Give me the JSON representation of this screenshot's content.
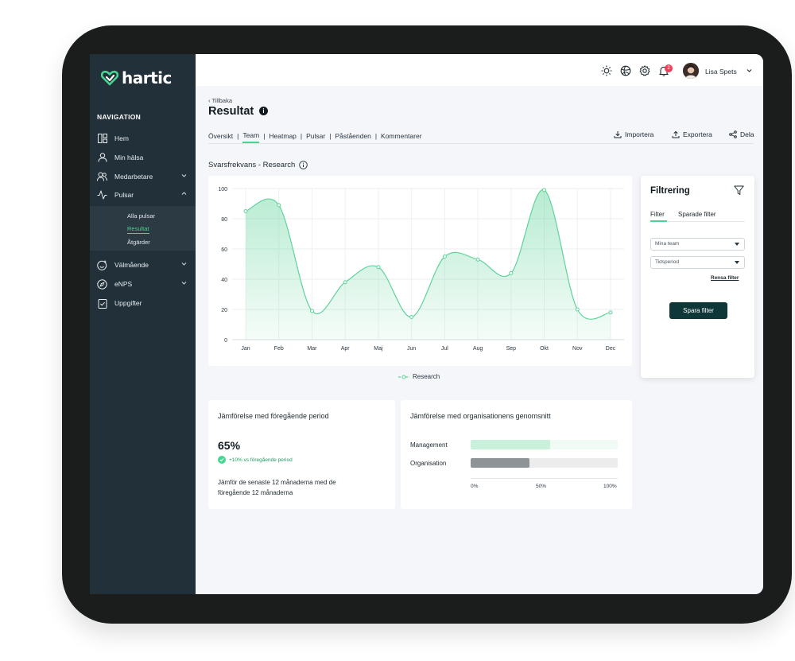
{
  "app": {
    "name": "hartic"
  },
  "sidebar": {
    "nav_title": "NAVIGATION",
    "items": [
      {
        "label": "Hem",
        "icon": "dashboard-icon"
      },
      {
        "label": "Min hälsa",
        "icon": "user-icon"
      },
      {
        "label": "Medarbetare",
        "icon": "users-icon",
        "expandable": true
      },
      {
        "label": "Pulsar",
        "icon": "activity-icon",
        "expandable": true,
        "expanded": true
      },
      {
        "label": "Välmående",
        "icon": "smiley-icon",
        "expandable": true
      },
      {
        "label": "eNPS",
        "icon": "compass-icon",
        "expandable": true
      },
      {
        "label": "Uppgifter",
        "icon": "clipboard-icon"
      }
    ],
    "subitems": [
      {
        "label": "Alla pulsar",
        "active": false
      },
      {
        "label": "Resultat",
        "active": true
      },
      {
        "label": "Åtgärder",
        "active": false
      }
    ]
  },
  "topbar": {
    "icons": [
      "sun-icon",
      "globe-icon",
      "gear-icon",
      "bell-icon"
    ],
    "notification_count": "2",
    "user_name": "Lisa Spets"
  },
  "page": {
    "back_label": "Tillbaka",
    "title": "Resultat",
    "tabs": [
      {
        "label": "Översikt",
        "active": false
      },
      {
        "label": "Team",
        "active": true
      },
      {
        "label": "Heatmap",
        "active": false
      },
      {
        "label": "Pulsar",
        "active": false
      },
      {
        "label": "Påståenden",
        "active": false
      },
      {
        "label": "Kommentarer",
        "active": false
      }
    ],
    "actions": {
      "import": "Importera",
      "export": "Exportera",
      "share": "Dela"
    },
    "section_title": "Svarsfrekvans - Research"
  },
  "chart_data": {
    "type": "area",
    "title": "Svarsfrekvans - Research",
    "categories": [
      "Jan",
      "Feb",
      "Mar",
      "Apr",
      "Maj",
      "Jun",
      "Jul",
      "Aug",
      "Sep",
      "Okt",
      "Nov",
      "Dec"
    ],
    "series": [
      {
        "name": "Research",
        "values": [
          85,
          89,
          19,
          38,
          48,
          15,
          55,
          53,
          44,
          99,
          20,
          18
        ]
      }
    ],
    "yticks": [
      "0",
      "20",
      "40",
      "60",
      "80",
      "100"
    ],
    "ylim": [
      0,
      100
    ],
    "grid": true,
    "legend": "bottom",
    "color": "#5fd39a"
  },
  "filter": {
    "title": "Filtrering",
    "tabs": [
      "Filter",
      "Sparade filter"
    ],
    "selects": [
      "Mina team",
      "Tidsperiod"
    ],
    "clear_label": "Rensa filter",
    "save_label": "Spara filter"
  },
  "comparison_previous": {
    "title": "Jämförelse med föregående period",
    "value": "65%",
    "delta": "+10% vs föregående period",
    "description": "Jämför de senaste 12 månaderna med de föregående 12 månaderna"
  },
  "comparison_org": {
    "title": "Jämförelse med organisationens genomsnitt",
    "bars": [
      {
        "label": "Management",
        "percent": 54,
        "color": "#c9f0da",
        "track": "#f1fbf5"
      },
      {
        "label": "Organisation",
        "percent": 40,
        "color": "#8e9396",
        "track": "#ececec"
      }
    ],
    "ticks": [
      "0%",
      "50%",
      "100%"
    ]
  },
  "colors": {
    "accent": "#48d491",
    "sidebar": "#22303a",
    "button": "#0f3638"
  }
}
